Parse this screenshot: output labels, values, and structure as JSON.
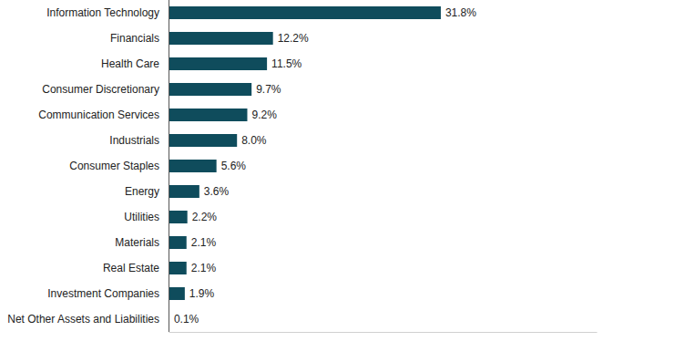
{
  "chart_data": {
    "type": "bar",
    "orientation": "horizontal",
    "categories": [
      "Information Technology",
      "Financials",
      "Health Care",
      "Consumer Discretionary",
      "Communication Services",
      "Industrials",
      "Consumer Staples",
      "Energy",
      "Utilities",
      "Materials",
      "Real Estate",
      "Investment Companies",
      "Net Other Assets and Liabilities"
    ],
    "values": [
      31.8,
      12.2,
      11.5,
      9.7,
      9.2,
      8.0,
      5.6,
      3.6,
      2.2,
      2.1,
      2.1,
      1.9,
      0.1
    ],
    "value_labels": [
      "31.8%",
      "12.2%",
      "11.5%",
      "9.7%",
      "9.2%",
      "8.0%",
      "5.6%",
      "3.6%",
      "2.2%",
      "2.1%",
      "2.1%",
      "1.9%",
      "0.1%"
    ],
    "color": "#0f4c5c",
    "xlim": [
      0,
      50
    ],
    "grid": false,
    "data_labels": true,
    "tick_labels": "y"
  }
}
